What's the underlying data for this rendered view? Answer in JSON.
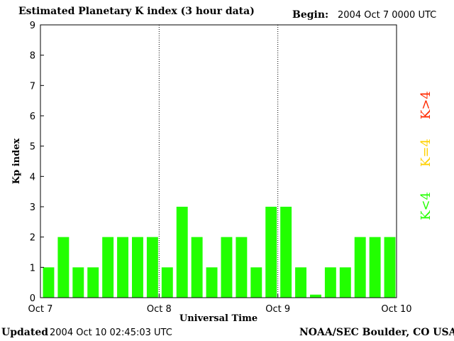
{
  "header": {
    "title": "Estimated Planetary K index (3 hour data)",
    "begin_label": "Begin:",
    "begin_value": "2004 Oct 7 0000 UTC"
  },
  "footer": {
    "updated_label": "Updated",
    "updated_value": "2004 Oct 10 02:45:03 UTC",
    "source": "NOAA/SEC Boulder, CO USA"
  },
  "legend": {
    "high": {
      "label": "K>4",
      "color": "#ff2a00"
    },
    "equal": {
      "label": "K=4",
      "color": "#ffd000"
    },
    "low": {
      "label": "K<4",
      "color": "#22ff00"
    }
  },
  "chart_data": {
    "type": "bar",
    "title": "Estimated Planetary K index (3 hour data)",
    "xlabel": "Universal Time",
    "ylabel": "Kp index",
    "ylim": [
      0,
      9
    ],
    "yticks": [
      "0",
      "1",
      "2",
      "3",
      "4",
      "5",
      "6",
      "7",
      "8",
      "9"
    ],
    "xticks": [
      "Oct 7",
      "Oct 8",
      "Oct 9",
      "Oct 10"
    ],
    "day_separators": [
      "Oct 8",
      "Oct 9"
    ],
    "bar_color": "#22ff00",
    "values": [
      1,
      2,
      1,
      1,
      2,
      2,
      2,
      2,
      1,
      3,
      2,
      1,
      2,
      2,
      1,
      3,
      3,
      1,
      0.1,
      1,
      1,
      2,
      2,
      2
    ]
  }
}
